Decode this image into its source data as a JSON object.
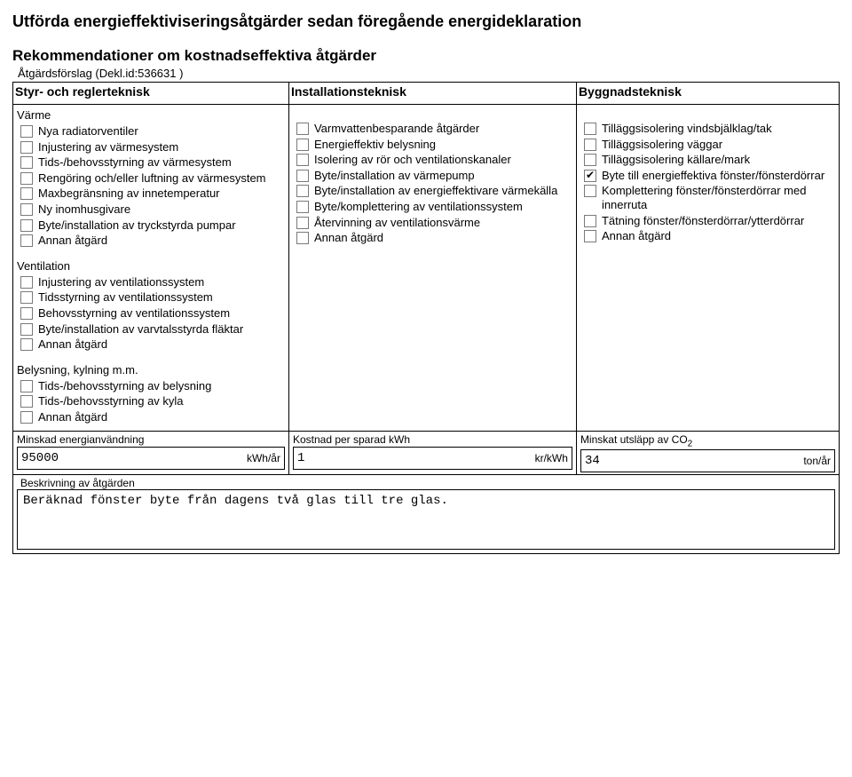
{
  "heading1": "Utförda energieffektiviseringsåtgärder sedan föregående energideklaration",
  "heading2": "Rekommendationer om kostnadseffektiva åtgärder",
  "subline": "Åtgärdsförslag (Dekl.id:536631 )",
  "columns": {
    "c1": "Styr- och reglerteknisk",
    "c2": "Installationsteknisk",
    "c3": "Byggnadsteknisk"
  },
  "groups": {
    "varme": "Värme",
    "vent": "Ventilation",
    "bely": "Belysning, kylning m.m."
  },
  "col1_varme": [
    {
      "label": "Nya radiatorventiler",
      "checked": false
    },
    {
      "label": "Injustering av värmesystem",
      "checked": false
    },
    {
      "label": "Tids-/behovsstyrning av värmesystem",
      "checked": false
    },
    {
      "label": "Rengöring och/eller luftning av värmesystem",
      "checked": false
    },
    {
      "label": "Maxbegränsning av innetemperatur",
      "checked": false
    },
    {
      "label": "Ny inomhusgivare",
      "checked": false
    },
    {
      "label": "Byte/installation av tryckstyrda pumpar",
      "checked": false
    },
    {
      "label": "Annan åtgärd",
      "checked": false
    }
  ],
  "col2_items": [
    {
      "label": "Varmvattenbesparande åtgärder",
      "checked": false
    },
    {
      "label": "Energieffektiv belysning",
      "checked": false
    },
    {
      "label": "Isolering av rör och ventilationskanaler",
      "checked": false
    },
    {
      "label": "Byte/installation av värmepump",
      "checked": false
    },
    {
      "label": "Byte/installation av energieffektivare värmekälla",
      "checked": false
    },
    {
      "label": "Byte/komplettering av ventilationssystem",
      "checked": false
    },
    {
      "label": "Återvinning av ventilationsvärme",
      "checked": false
    },
    {
      "label": "Annan åtgärd",
      "checked": false
    }
  ],
  "col3_items": [
    {
      "label": "Tilläggsisolering vindsbjälklag/tak",
      "checked": false
    },
    {
      "label": "Tilläggsisolering väggar",
      "checked": false
    },
    {
      "label": "Tilläggsisolering källare/mark",
      "checked": false
    },
    {
      "label": "Byte till energieffektiva fönster/fönsterdörrar",
      "checked": true
    },
    {
      "label": "Komplettering fönster/fönsterdörrar med innerruta",
      "checked": false
    },
    {
      "label": "Tätning fönster/fönsterdörrar/ytterdörrar",
      "checked": false
    },
    {
      "label": "Annan åtgärd",
      "checked": false
    }
  ],
  "col1_vent": [
    {
      "label": "Injustering av ventilationssystem",
      "checked": false
    },
    {
      "label": "Tidsstyrning av ventilationssystem",
      "checked": false
    },
    {
      "label": "Behovsstyrning av ventilationssystem",
      "checked": false
    },
    {
      "label": "Byte/installation av varvtalsstyrda fläktar",
      "checked": false
    },
    {
      "label": "Annan åtgärd",
      "checked": false
    }
  ],
  "col1_bely": [
    {
      "label": "Tids-/behovsstyrning av belysning",
      "checked": false
    },
    {
      "label": "Tids-/behovsstyrning av kyla",
      "checked": false
    },
    {
      "label": "Annan åtgärd",
      "checked": false
    }
  ],
  "results": {
    "r1_label": "Minskad energianvändning",
    "r1_value": "95000",
    "r1_unit": "kWh/år",
    "r2_label": "Kostnad per sparad kWh",
    "r2_value": "1",
    "r2_unit": "kr/kWh",
    "r3_label": "Minskat utsläpp av CO",
    "r3_sub": "2",
    "r3_value": "34",
    "r3_unit": "ton/år"
  },
  "desc_label": "Beskrivning av åtgärden",
  "desc_value": "Beräknad fönster byte från dagens två glas till tre glas."
}
